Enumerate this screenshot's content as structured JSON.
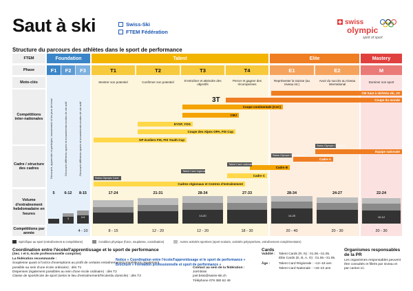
{
  "title": "Saut à ski",
  "links": [
    "Swiss-Ski",
    "FTEM Fédération"
  ],
  "logo": {
    "word1": "swiss",
    "word2": "olympic",
    "tagline": "spirit of sport"
  },
  "subtitle": "Structure du parcours des athlètes dans le sport de performance",
  "rows": {
    "ftem": "FTEM",
    "phase": "Phase",
    "motto": "Moto-clés",
    "competitions": "Compétitions inter-nationales",
    "cadres": "Cadre / structure des cadres",
    "volume": "Volume d'entraînement hebdomadaire en heures",
    "compyear": "Compétitions par année"
  },
  "pillars": [
    "Foundation",
    "Talent",
    "Elite",
    "Mastery"
  ],
  "phases": [
    "F1",
    "F2",
    "F3",
    "T1",
    "T2",
    "T3",
    "T4",
    "E1",
    "E2",
    "M"
  ],
  "mottos": [
    "",
    "",
    "",
    "Montrer son potentiel",
    "Confirmer son potentiel",
    "S'entraîner et atteindre des objectifs",
    "Percer et gagner des récompenses",
    "Représenter la Suisse (au niveau int.)",
    "Avoir du succès au niveau international",
    "Dominer son sport"
  ],
  "foundation_texts": [
    "Découvrir, apprendre et participer; mouvement et les jeux de base",
    "Découvrir différents sports et mouvements modes de vie actif",
    "Découvrir différents sports et mouvements modes de vie actif"
  ],
  "competition_bars": [
    "CM Saut à ski/Vola ski, JO",
    "Coupe du monde",
    "Coupe continentale (CoC)",
    "CMJ",
    "EYOF, YOG",
    "Coupe des Alpes OPA, FIS Cup",
    "GP écoliers FIS, FIS Youth Cup"
  ],
  "cadre_bars": [
    "Équipe nationale",
    "Cadre A",
    "Cadre B",
    "Cadre C",
    "Cadres régionaux et Centres d'entraînement"
  ],
  "cadre_tags": [
    "Swiss Olympic Card",
    "Talent Card régionale",
    "Talent Card nationale",
    "Swiss Olympic Card Élite",
    "Swiss Olympic Card Bronze"
  ],
  "volume": [
    "5",
    "6-12",
    "8-15",
    "17-24",
    "21-31",
    "28-34",
    "27-33",
    "28-34",
    "24-27",
    "22-24"
  ],
  "volume_breakdown": [
    [
      "",
      "",
      ""
    ],
    [
      "2",
      "3",
      "1"
    ],
    [
      "3-5",
      "2-4",
      "1-2"
    ],
    [
      "",
      "",
      ""
    ],
    [
      "",
      "",
      ""
    ],
    [
      "14-20",
      "",
      ""
    ],
    [
      "",
      "",
      ""
    ],
    [
      "14-20",
      "",
      ""
    ],
    [
      "",
      "",
      ""
    ],
    [
      "10-12",
      "",
      ""
    ]
  ],
  "comp_per_year": [
    "",
    "",
    "4 - 10",
    "8 - 15",
    "12 - 20",
    "12 - 20",
    "18 - 30",
    "20 - 40",
    "20 - 30",
    "20 - 30"
  ],
  "legend": [
    "Spécifique au sport (entraînement & compétitions)",
    "Condition physique (force, souplesse, coordination)",
    "Autres activités sportives (sport scolaire, activités polysportives, entraînement complémentaire)"
  ],
  "coord": {
    "title": "Coordination entre l'école/l'apprentissage et le sport de performance",
    "sub": "(Sec. I et II, école professionnelle comprise)",
    "link1": "Notice « Coordination entre l'école/l'apprentissage et le sport de performance »",
    "link2": "Brochure « Formation professionnelle et sport de performance »",
    "heading": "La fédération recommande :",
    "items": [
      "Souplesse quant à l'octroi d'exemptions au profit de certains entraînements/compétitions (également possible au sein d'une école ordinaire) : dès T1",
      "Dispenses (également possibles au sein d'une école ordinaire) : dès T2",
      "Classe de sport/école de sport (selon le lieu d'entraînement/l'école/du domicile) : dès T3"
    ],
    "contact_title": "Contact au sein de la fédération :",
    "contact_name": "Joël Bissi",
    "contact_mail": "joel.bissi@swiss-ski.ch",
    "contact_tel": "Téléphone 079 380 62 49"
  },
  "cards": {
    "title": "Cards",
    "validity_label": "Validité :",
    "validity": [
      "Talent Cards (R, N) : 01.06.–31.05.",
      "Elite Cards (E, B, A, O) : 01.06.–31.05."
    ],
    "age_label": "Âge :",
    "age": [
      "Talent Card Régionale : ~12–18 ans",
      "Talent Card Nationale : ~16–22 ans"
    ]
  },
  "orgs": {
    "title": "Organismes responsables de la PR",
    "text": "Les organismes responsables peuvent être consultés et filtrés par niveau et par canton ici."
  },
  "colors": {
    "foundation": "#3a85c8",
    "talent": "#f3b400",
    "elite": "#ef7d22",
    "mastery": "#e0403e",
    "bar_orange": "#f4a300",
    "bar_yellow": "#ffd84a"
  }
}
